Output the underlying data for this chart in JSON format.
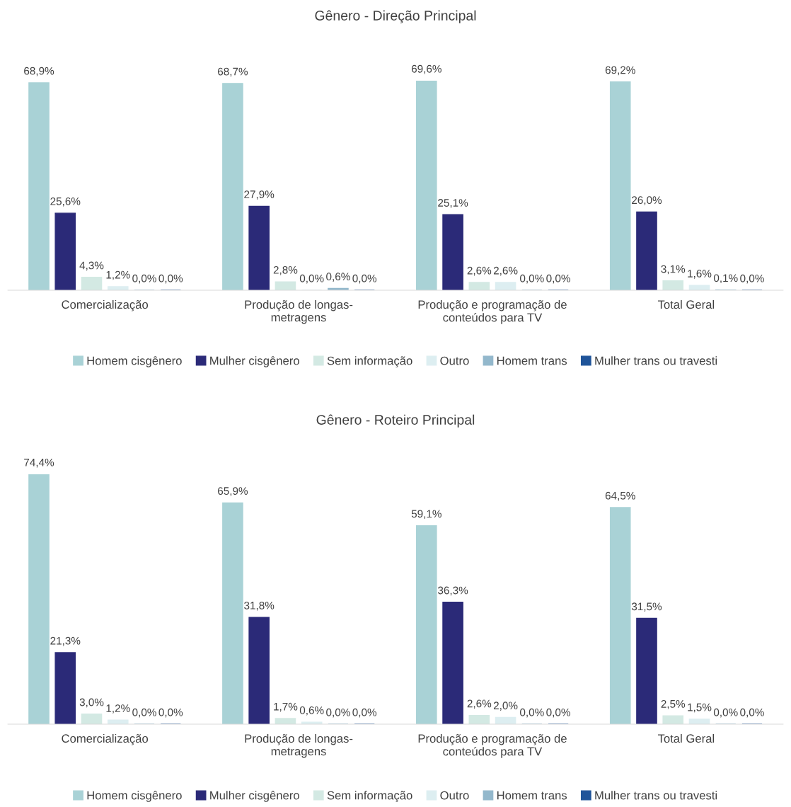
{
  "chart_data": [
    {
      "type": "bar",
      "title": "Gênero - Direção Principal",
      "categories": [
        "Comercialização",
        "Produção de longas-\nmetragens",
        "Produção e programação de\nconteúdos para TV",
        "Total Geral"
      ],
      "legend": "bottom",
      "grid": false,
      "data_labels": true,
      "series": [
        {
          "name": "Homem cisgênero",
          "color": "#a9d2d6",
          "values": [
            68.9,
            68.7,
            69.6,
            69.2
          ],
          "value_labels": [
            "68,9%",
            "68,7%",
            "69,6%",
            "69,2%"
          ]
        },
        {
          "name": "Mulher cisgênero",
          "color": "#2b2a78",
          "values": [
            25.6,
            27.9,
            25.1,
            26.0
          ],
          "value_labels": [
            "25,6%",
            "27,9%",
            "25,1%",
            "26,0%"
          ]
        },
        {
          "name": "Sem informação",
          "color": "#d3e9e3",
          "values": [
            4.3,
            2.8,
            2.6,
            3.1
          ],
          "value_labels": [
            "4,3%",
            "2,8%",
            "2,6%",
            "3,1%"
          ]
        },
        {
          "name": "Outro",
          "color": "#ddeef1",
          "values": [
            1.2,
            0.0,
            2.6,
            1.6
          ],
          "value_labels": [
            "1,2%",
            "0,0%",
            "2,6%",
            "1,6%"
          ]
        },
        {
          "name": "Homem trans",
          "color": "#93b8cc",
          "values": [
            0.0,
            0.6,
            0.0,
            0.1
          ],
          "value_labels": [
            "0,0%",
            "0,6%",
            "0,0%",
            "0,1%"
          ]
        },
        {
          "name": "Mulher trans ou travesti",
          "color": "#1f5499",
          "values": [
            0.0,
            0.0,
            0.0,
            0.0
          ],
          "value_labels": [
            "0,0%",
            "0,0%",
            "0,0%",
            "0,0%"
          ]
        }
      ]
    },
    {
      "type": "bar",
      "title": "Gênero - Roteiro Principal",
      "categories": [
        "Comercialização",
        "Produção de longas-\nmetragens",
        "Produção e programação de\nconteúdos para TV",
        "Total Geral"
      ],
      "legend": "bottom",
      "grid": false,
      "data_labels": true,
      "series": [
        {
          "name": "Homem cisgênero",
          "color": "#a9d2d6",
          "values": [
            74.4,
            65.9,
            59.1,
            64.5
          ],
          "value_labels": [
            "74,4%",
            "65,9%",
            "59,1%",
            "64,5%"
          ]
        },
        {
          "name": "Mulher cisgênero",
          "color": "#2b2a78",
          "values": [
            21.3,
            31.8,
            36.3,
            31.5
          ],
          "value_labels": [
            "21,3%",
            "31,8%",
            "36,3%",
            "31,5%"
          ]
        },
        {
          "name": "Sem informação",
          "color": "#d3e9e3",
          "values": [
            3.0,
            1.7,
            2.6,
            2.5
          ],
          "value_labels": [
            "3,0%",
            "1,7%",
            "2,6%",
            "2,5%"
          ]
        },
        {
          "name": "Outro",
          "color": "#ddeef1",
          "values": [
            1.2,
            0.6,
            2.0,
            1.5
          ],
          "value_labels": [
            "1,2%",
            "0,6%",
            "2,0%",
            "1,5%"
          ]
        },
        {
          "name": "Homem trans",
          "color": "#93b8cc",
          "values": [
            0.0,
            0.0,
            0.0,
            0.0
          ],
          "value_labels": [
            "0,0%",
            "0,0%",
            "0,0%",
            "0,0%"
          ]
        },
        {
          "name": "Mulher trans ou travesti",
          "color": "#1f5499",
          "values": [
            0.0,
            0.0,
            0.0,
            0.0
          ],
          "value_labels": [
            "0,0%",
            "0,0%",
            "0,0%",
            "0,0%"
          ]
        }
      ]
    }
  ]
}
